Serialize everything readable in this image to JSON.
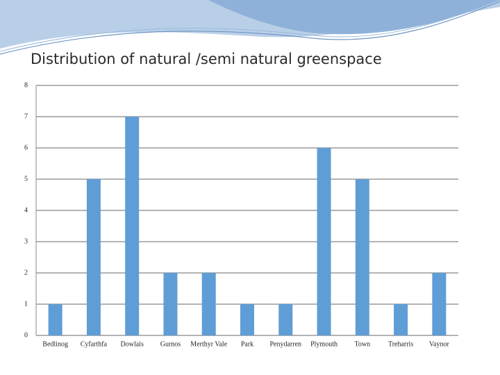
{
  "chart_data": {
    "type": "bar",
    "title": "Distribution of natural /semi natural greenspace",
    "categories": [
      "Bedlinog",
      "Cyfarthfa",
      "Dowlais",
      "Gurnos",
      "Merthyr Vale",
      "Park",
      "Penydarren",
      "Plymouth",
      "Town",
      "Treharris",
      "Vaynor"
    ],
    "values": [
      1,
      5,
      7,
      2,
      2,
      1,
      1,
      6,
      5,
      1,
      2
    ],
    "color": "#5f9dd6",
    "ylim": [
      0,
      8
    ],
    "yticks": [
      0,
      1,
      2,
      3,
      4,
      5,
      6,
      7,
      8
    ],
    "grid": true
  }
}
